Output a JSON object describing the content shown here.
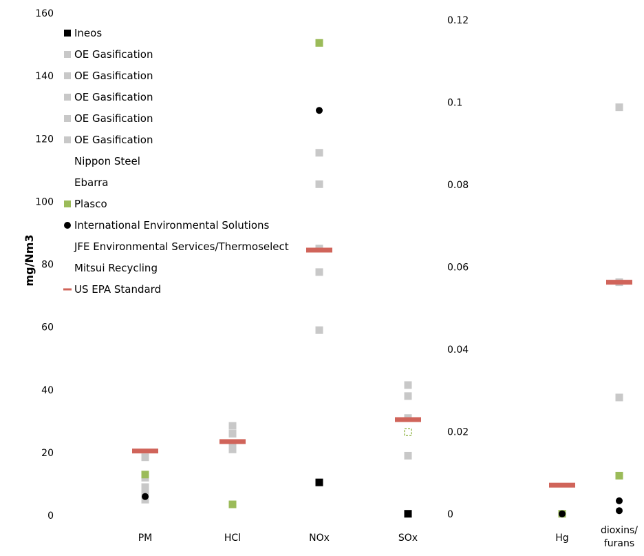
{
  "chart_data": {
    "type": "scatter",
    "ylabel": "mg/Nm3",
    "left_axis": {
      "ylim": [
        0,
        160
      ],
      "ticks": [
        "0",
        "20",
        "40",
        "60",
        "80",
        "100",
        "120",
        "140",
        "160"
      ]
    },
    "right_axis": {
      "ylim": [
        0,
        0.12
      ],
      "ticks": [
        "0",
        "0.02",
        "0.04",
        "0.06",
        "0.08",
        "0.1",
        "0.12"
      ]
    },
    "categories": [
      {
        "label": "PM",
        "axis": "left"
      },
      {
        "label": "HCl",
        "axis": "left"
      },
      {
        "label": "NOx",
        "axis": "left"
      },
      {
        "label": "SOx",
        "axis": "left"
      },
      {
        "label": "Hg",
        "axis": "right"
      },
      {
        "label": "dioxins/ furans",
        "lines": [
          "dioxins/",
          "furans"
        ],
        "axis": "right"
      }
    ],
    "legend_position": "top-left",
    "grid": false,
    "series": [
      {
        "name": "Ineos",
        "marker": "square",
        "color": "#000000",
        "points": [
          {
            "category": "NOx",
            "y": 10.5
          },
          {
            "category": "SOx",
            "y": 0.5
          }
        ]
      },
      {
        "name": "OE Gasification",
        "marker": "square",
        "color": "#c8c8c8",
        "points": [
          {
            "category": "PM",
            "y": 18.5
          },
          {
            "category": "HCl",
            "y": 28.5
          },
          {
            "category": "NOx",
            "y": 115.5
          },
          {
            "category": "SOx",
            "y": 41.5
          },
          {
            "category": "dioxins/ furans",
            "y": 0.0988
          }
        ]
      },
      {
        "name": "OE Gasification",
        "marker": "square",
        "color": "#c8c8c8",
        "points": [
          {
            "category": "PM",
            "y": 12
          },
          {
            "category": "HCl",
            "y": 26
          },
          {
            "category": "NOx",
            "y": 105.5
          },
          {
            "category": "SOx",
            "y": 38
          },
          {
            "category": "dioxins/ furans",
            "y": 0.0283
          }
        ]
      },
      {
        "name": "OE Gasification",
        "marker": "square",
        "color": "#c8c8c8",
        "points": [
          {
            "category": "PM",
            "y": 9
          },
          {
            "category": "HCl",
            "y": 23
          },
          {
            "category": "NOx",
            "y": 85
          },
          {
            "category": "SOx",
            "y": 31
          },
          {
            "category": "dioxins/ furans",
            "y": 0.0563
          }
        ]
      },
      {
        "name": "OE Gasification",
        "marker": "square",
        "color": "#c8c8c8",
        "points": [
          {
            "category": "PM",
            "y": 7
          },
          {
            "category": "HCl",
            "y": 21
          },
          {
            "category": "NOx",
            "y": 77.5
          },
          {
            "category": "SOx",
            "y": 19
          }
        ]
      },
      {
        "name": "OE Gasification",
        "marker": "square",
        "color": "#c8c8c8",
        "points": [
          {
            "category": "PM",
            "y": 5
          },
          {
            "category": "NOx",
            "y": 59
          }
        ]
      },
      {
        "name": "Nippon Steel",
        "marker": "none",
        "points": []
      },
      {
        "name": "Ebarra",
        "marker": "none",
        "points": []
      },
      {
        "name": "Plasco",
        "marker": "square",
        "color": "#9bbb59",
        "points": [
          {
            "category": "PM",
            "y": 13
          },
          {
            "category": "HCl",
            "y": 3.5
          },
          {
            "category": "NOx",
            "y": 150.5
          },
          {
            "category": "SOx",
            "y": 26.5,
            "hollow": true
          },
          {
            "category": "Hg",
            "y": 5e-05
          },
          {
            "category": "dioxins/ furans",
            "y": 0.0093
          }
        ]
      },
      {
        "name": "International Environmental Solutions",
        "marker": "circle",
        "color": "#000000",
        "points": [
          {
            "category": "PM",
            "y": 6
          },
          {
            "category": "NOx",
            "y": 129
          },
          {
            "category": "SOx",
            "y": 0.5
          },
          {
            "category": "Hg",
            "y": 3e-05
          },
          {
            "category": "dioxins/ furans",
            "y": 0.0032
          },
          {
            "category": "dioxins/ furans",
            "y": 0.0008
          }
        ]
      },
      {
        "name": "JFE Environmental Services/Thermoselect",
        "marker": "none",
        "points": []
      },
      {
        "name": "Mitsui Recycling",
        "marker": "none",
        "points": []
      },
      {
        "name": "US EPA Standard",
        "marker": "dash",
        "color": "#d0645a",
        "points": [
          {
            "category": "PM",
            "y": 20.5
          },
          {
            "category": "HCl",
            "y": 23.5
          },
          {
            "category": "NOx",
            "y": 84.5
          },
          {
            "category": "SOx",
            "y": 30.5
          },
          {
            "category": "Hg",
            "y": 0.007
          },
          {
            "category": "dioxins/ furans",
            "y": 0.0563
          }
        ]
      }
    ]
  }
}
